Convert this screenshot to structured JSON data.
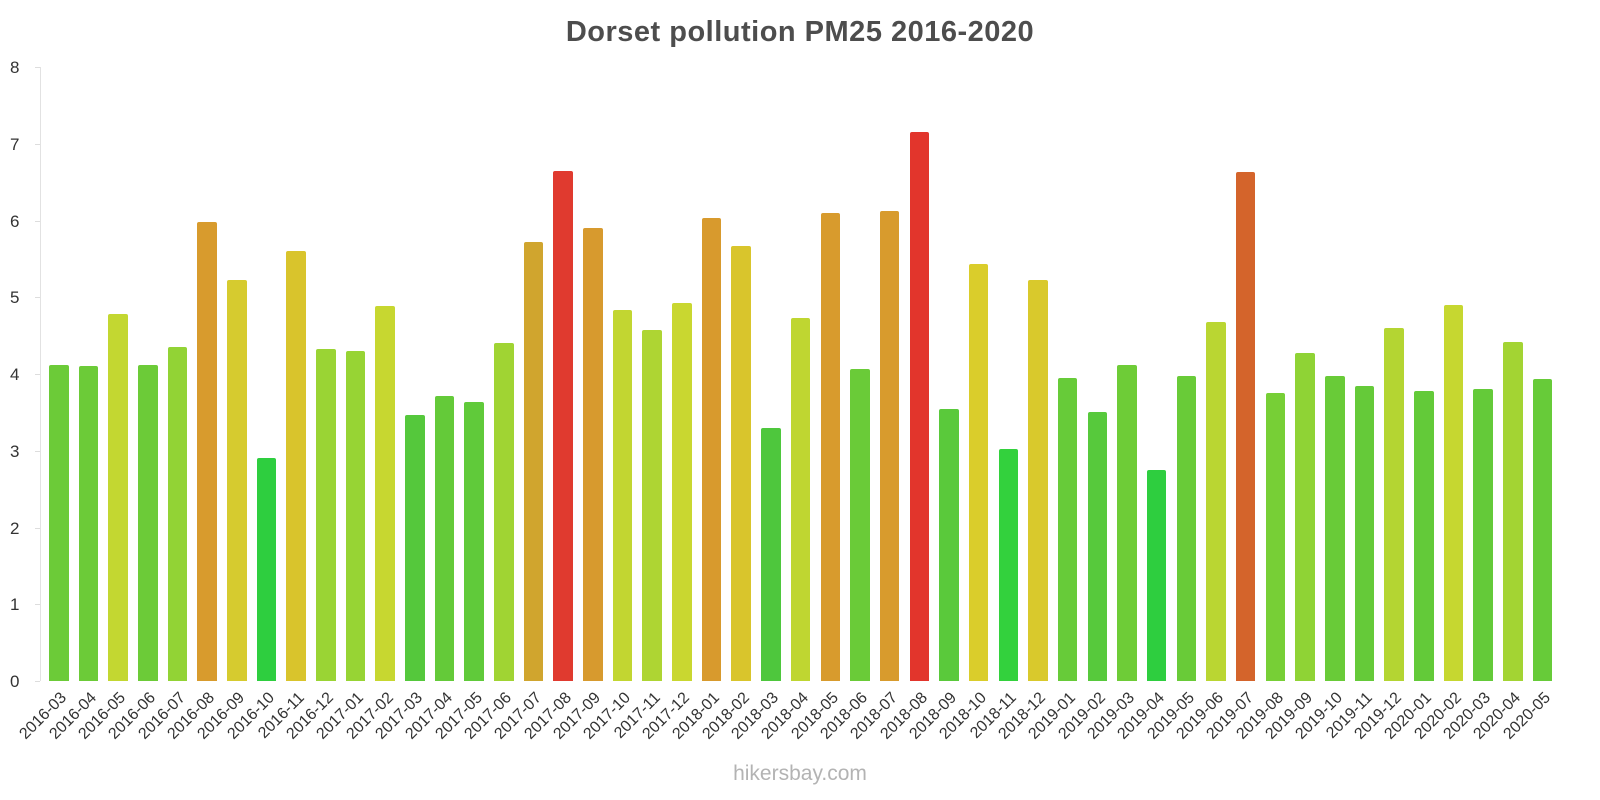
{
  "title": "Dorset pollution PM25 2016-2020",
  "watermark": "hikersbay.com",
  "y_axis": {
    "ticks": [
      0,
      1,
      2,
      3,
      4,
      5,
      6,
      7,
      8
    ],
    "min": 0,
    "max": 8
  },
  "chart_data": {
    "type": "bar",
    "title": "Dorset pollution PM25 2016-2020",
    "xlabel": "",
    "ylabel": "",
    "ylim": [
      0,
      8
    ],
    "grid": false,
    "legend": "none",
    "categories": [
      "2016-03",
      "2016-04",
      "2016-05",
      "2016-06",
      "2016-07",
      "2016-08",
      "2016-09",
      "2016-10",
      "2016-11",
      "2016-12",
      "2017-01",
      "2017-02",
      "2017-03",
      "2017-04",
      "2017-05",
      "2017-06",
      "2017-07",
      "2017-08",
      "2017-09",
      "2017-10",
      "2017-11",
      "2017-12",
      "2018-01",
      "2018-02",
      "2018-03",
      "2018-04",
      "2018-05",
      "2018-06",
      "2018-07",
      "2018-08",
      "2018-09",
      "2018-10",
      "2018-11",
      "2018-12",
      "2019-01",
      "2019-02",
      "2019-03",
      "2019-04",
      "2019-05",
      "2019-06",
      "2019-07",
      "2019-08",
      "2019-09",
      "2019-10",
      "2019-11",
      "2019-12",
      "2020-01",
      "2020-02",
      "2020-03",
      "2020-04",
      "2020-05"
    ],
    "values": [
      4.12,
      4.1,
      4.78,
      4.12,
      4.35,
      5.98,
      5.23,
      2.91,
      5.6,
      4.33,
      4.3,
      4.88,
      3.46,
      3.72,
      3.63,
      4.4,
      5.72,
      6.65,
      5.9,
      4.83,
      4.57,
      4.93,
      6.03,
      5.67,
      3.3,
      4.73,
      6.1,
      4.07,
      6.13,
      7.15,
      3.55,
      5.43,
      3.02,
      5.22,
      3.95,
      3.5,
      4.12,
      2.75,
      3.98,
      4.68,
      6.63,
      3.75,
      4.27,
      3.98,
      3.85,
      4.6,
      3.78,
      4.9,
      3.8,
      4.42,
      3.93
    ],
    "colors": [
      "#6CCB38",
      "#6CCB38",
      "#C3D731",
      "#6CCB38",
      "#92D335",
      "#D89B2D",
      "#D6CB2F",
      "#2ECE3F",
      "#D9C42C",
      "#9AD434",
      "#97D434",
      "#C7D730",
      "#55C83C",
      "#64CA39",
      "#60CA3A",
      "#A0D433",
      "#D0A52E",
      "#E03A2F",
      "#D79A2E",
      "#C2D631",
      "#AED533",
      "#C9D730",
      "#D89A2D",
      "#D9C52C",
      "#4EC73D",
      "#BFD631",
      "#D89B2D",
      "#6ACB38",
      "#D89B2D",
      "#E2352C",
      "#5AC93B",
      "#DACD2B",
      "#33D13D",
      "#D9C92C",
      "#67CB39",
      "#57C93C",
      "#6ECC37",
      "#2ECE3F",
      "#69CB38",
      "#BAD632",
      "#D4642B",
      "#77CF36",
      "#8FD335",
      "#69CB38",
      "#65CA39",
      "#B4D532",
      "#63CA39",
      "#C6D730",
      "#64CA39",
      "#A3D433",
      "#67CB39"
    ]
  }
}
